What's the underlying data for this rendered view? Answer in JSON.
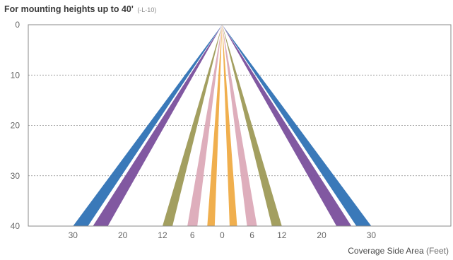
{
  "chart_data": {
    "type": "area",
    "title": "For mounting heights up to 40'",
    "title_suffix": "(-L-10)",
    "xlabel": "Coverage Side Area",
    "xlabel_unit": "(Feet)",
    "ylabel": "",
    "x_ticks": [
      {
        "label": "30",
        "value": -30
      },
      {
        "label": "20",
        "value": -20
      },
      {
        "label": "12",
        "value": -12
      },
      {
        "label": "6",
        "value": -6
      },
      {
        "label": "0",
        "value": 0
      },
      {
        "label": "6",
        "value": 6
      },
      {
        "label": "12",
        "value": 12
      },
      {
        "label": "20",
        "value": 20
      },
      {
        "label": "30",
        "value": 30
      }
    ],
    "y_ticks": [
      0,
      10,
      20,
      30,
      40
    ],
    "xlim": [
      -39,
      46
    ],
    "ylim": [
      0,
      40
    ],
    "y_inverted": true,
    "grid": "horizontal-dashed",
    "apex": [
      0,
      0
    ],
    "beams": [
      {
        "color": "#2f72b5",
        "spread_at_40": [
          -30,
          -27,
          27,
          30
        ]
      },
      {
        "color": "#7a4f9c",
        "spread_at_40": [
          -26,
          -23,
          23,
          26
        ]
      },
      {
        "color": "#9e9a57",
        "spread_at_40": [
          -12,
          -10,
          10,
          12
        ]
      },
      {
        "color": "#dcaab8",
        "spread_at_40": [
          -7,
          -5,
          5,
          7
        ]
      },
      {
        "color": "#efab45",
        "spread_at_40": [
          -3,
          -1.5,
          1.5,
          3
        ]
      }
    ]
  }
}
